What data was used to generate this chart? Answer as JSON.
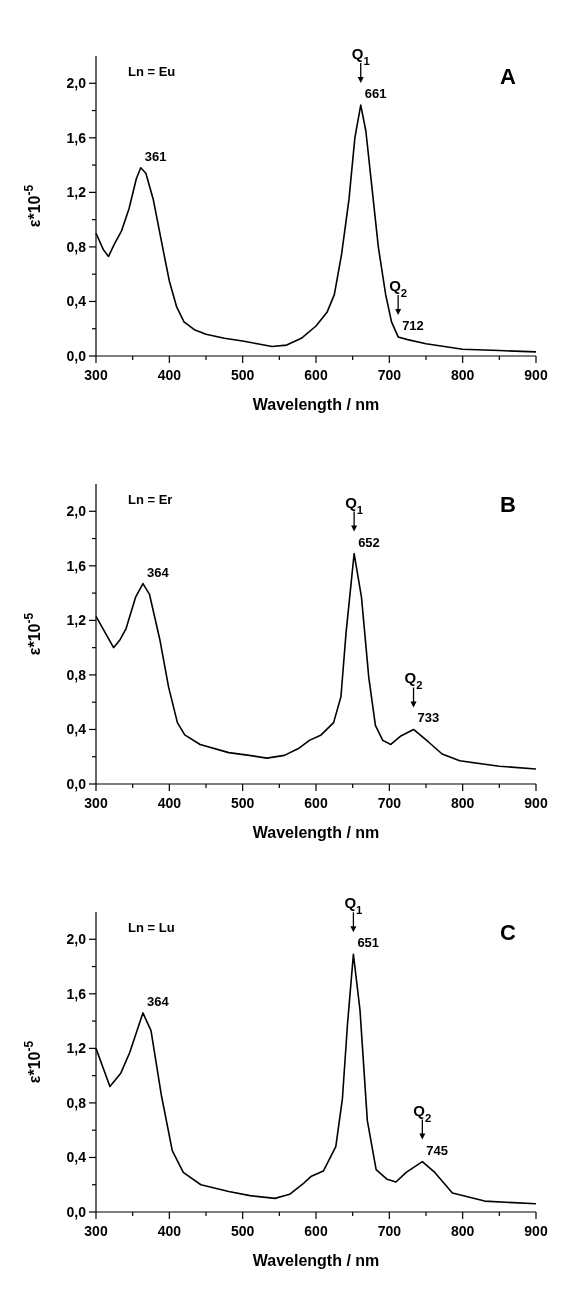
{
  "chart_data": [
    {
      "type": "line",
      "xlabel": "Wavelength / nm",
      "ylabel": "ε*10$^{-5}$",
      "xlim": [
        300,
        900
      ],
      "ylim": [
        0,
        2.2
      ],
      "xticks": [
        300,
        {
          "value": 350,
          "label": null
        },
        400,
        {
          "value": 450,
          "label": null
        },
        500,
        {
          "value": 550,
          "label": null
        },
        600,
        {
          "value": 650,
          "label": null
        },
        700,
        {
          "value": 750,
          "label": null
        },
        800,
        {
          "value": 850,
          "label": null
        },
        900
      ],
      "yticks": [
        {
          "value": 0,
          "label": "0,0"
        },
        {
          "value": 0.2,
          "label": null
        },
        {
          "value": 0.4,
          "label": "0,4"
        },
        {
          "value": 0.6,
          "label": null
        },
        {
          "value": 0.8,
          "label": "0,8"
        },
        {
          "value": 1.0,
          "label": null
        },
        {
          "value": 1.2,
          "label": "1,2"
        },
        {
          "value": 1.4,
          "label": null
        },
        {
          "value": 1.6,
          "label": "1,6"
        },
        {
          "value": 1.8,
          "label": null
        },
        {
          "value": 2.0,
          "label": "2,0"
        }
      ],
      "series": [
        {
          "color": "#000000",
          "x": [
            300,
            310,
            317,
            325,
            335,
            345,
            355,
            361,
            368,
            378,
            390,
            400,
            410,
            420,
            435,
            450,
            475,
            500,
            520,
            540,
            560,
            580,
            600,
            615,
            625,
            635,
            645,
            653,
            661,
            668,
            676,
            685,
            695,
            703,
            712,
            725,
            750,
            775,
            800,
            850,
            900
          ],
          "values": [
            0.9,
            0.78,
            0.73,
            0.82,
            0.92,
            1.08,
            1.3,
            1.38,
            1.34,
            1.15,
            0.82,
            0.55,
            0.36,
            0.25,
            0.19,
            0.16,
            0.13,
            0.11,
            0.09,
            0.07,
            0.08,
            0.13,
            0.22,
            0.32,
            0.45,
            0.75,
            1.15,
            1.6,
            1.84,
            1.65,
            1.25,
            0.8,
            0.45,
            0.25,
            0.14,
            0.12,
            0.09,
            0.07,
            0.05,
            0.04,
            0.03
          ]
        }
      ],
      "annotations": [
        "Ln = Eu",
        "A",
        {
          "text": "361",
          "x": 361,
          "y": 1.38
        },
        {
          "text": "661",
          "x": 661,
          "y": 1.84
        },
        {
          "text": "Q$_{1}$",
          "x": 661,
          "y": 1.84
        },
        {
          "text": "712",
          "x": 712,
          "y": 0.14
        },
        {
          "text": "Q$_{2}$",
          "x": 712,
          "y": 0.14
        }
      ]
    },
    {
      "type": "line",
      "xlabel": "Wavelength / nm",
      "ylabel": "ε*10$^{-5}$",
      "xlim": [
        300,
        900
      ],
      "ylim": [
        0,
        2.2
      ],
      "xticks": [
        300,
        {
          "value": 350,
          "label": null
        },
        400,
        {
          "value": 450,
          "label": null
        },
        500,
        {
          "value": 550,
          "label": null
        },
        600,
        {
          "value": 650,
          "label": null
        },
        700,
        {
          "value": 750,
          "label": null
        },
        800,
        {
          "value": 850,
          "label": null
        },
        900
      ],
      "yticks": [
        {
          "value": 0,
          "label": "0,0"
        },
        {
          "value": 0.2,
          "label": null
        },
        {
          "value": 0.4,
          "label": "0,4"
        },
        {
          "value": 0.6,
          "label": null
        },
        {
          "value": 0.8,
          "label": "0,8"
        },
        {
          "value": 1.0,
          "label": null
        },
        {
          "value": 1.2,
          "label": "1,2"
        },
        {
          "value": 1.4,
          "label": null
        },
        {
          "value": 1.6,
          "label": "1,6"
        },
        {
          "value": 1.8,
          "label": null
        },
        {
          "value": 2.0,
          "label": "2,0"
        }
      ],
      "series": [
        {
          "color": "#000000",
          "x": [
            300,
            324,
            333,
            341,
            354,
            364,
            373,
            387,
            399,
            411,
            421,
            442,
            481,
            509,
            533,
            557,
            576,
            591,
            607,
            624,
            634,
            641,
            652,
            662,
            672,
            681,
            691,
            702,
            715,
            733,
            753,
            772,
            796,
            850,
            900
          ],
          "values": [
            1.23,
            1.0,
            1.06,
            1.14,
            1.37,
            1.47,
            1.39,
            1.06,
            0.71,
            0.45,
            0.36,
            0.29,
            0.23,
            0.21,
            0.19,
            0.21,
            0.26,
            0.32,
            0.36,
            0.45,
            0.64,
            1.11,
            1.69,
            1.37,
            0.78,
            0.43,
            0.32,
            0.29,
            0.35,
            0.4,
            0.31,
            0.22,
            0.17,
            0.13,
            0.11
          ]
        }
      ],
      "annotations": [
        "Ln = Er",
        "B",
        {
          "text": "364",
          "x": 364,
          "y": 1.47
        },
        {
          "text": "652",
          "x": 652,
          "y": 1.69
        },
        {
          "text": "Q$_{1}$",
          "x": 652,
          "y": 1.69
        },
        {
          "text": "733",
          "x": 733,
          "y": 0.4
        },
        {
          "text": "Q$_{2}$",
          "x": 733,
          "y": 0.4
        }
      ]
    },
    {
      "type": "line",
      "xlabel": "Wavelength / nm",
      "ylabel": "ε*10$^{-5}$",
      "xlim": [
        300,
        900
      ],
      "ylim": [
        0,
        2.2
      ],
      "xticks": [
        300,
        {
          "value": 350,
          "label": null
        },
        400,
        {
          "value": 450,
          "label": null
        },
        500,
        {
          "value": 550,
          "label": null
        },
        600,
        {
          "value": 650,
          "label": null
        },
        700,
        {
          "value": 750,
          "label": null
        },
        800,
        {
          "value": 850,
          "label": null
        },
        900
      ],
      "yticks": [
        {
          "value": 0,
          "label": "0,0"
        },
        {
          "value": 0.2,
          "label": null
        },
        {
          "value": 0.4,
          "label": "0,4"
        },
        {
          "value": 0.6,
          "label": null
        },
        {
          "value": 0.8,
          "label": "0,8"
        },
        {
          "value": 1.0,
          "label": null
        },
        {
          "value": 1.2,
          "label": "1,2"
        },
        {
          "value": 1.4,
          "label": null
        },
        {
          "value": 1.6,
          "label": "1,6"
        },
        {
          "value": 1.8,
          "label": null
        },
        {
          "value": 2.0,
          "label": "2,0"
        }
      ],
      "series": [
        {
          "color": "#000000",
          "x": [
            300,
            319,
            334,
            346,
            364,
            375,
            389,
            404,
            419,
            443,
            481,
            510,
            544,
            564,
            583,
            593,
            610,
            627,
            636,
            643,
            651,
            660,
            670,
            682,
            697,
            709,
            723,
            745,
            762,
            786,
            830,
            900
          ],
          "values": [
            1.2,
            0.92,
            1.02,
            1.17,
            1.46,
            1.33,
            0.86,
            0.45,
            0.29,
            0.2,
            0.15,
            0.12,
            0.1,
            0.13,
            0.21,
            0.26,
            0.3,
            0.48,
            0.83,
            1.38,
            1.89,
            1.48,
            0.67,
            0.31,
            0.24,
            0.22,
            0.29,
            0.37,
            0.29,
            0.14,
            0.08,
            0.06
          ]
        }
      ],
      "annotations": [
        "Ln = Lu",
        "C",
        {
          "text": "364",
          "x": 364,
          "y": 1.46
        },
        {
          "text": "651",
          "x": 651,
          "y": 1.89
        },
        {
          "text": "Q$_{1}$",
          "x": 651,
          "y": 1.89
        },
        {
          "text": "745",
          "x": 745,
          "y": 0.37
        },
        {
          "text": "Q$_{2}$",
          "x": 745,
          "y": 0.37
        }
      ]
    }
  ]
}
